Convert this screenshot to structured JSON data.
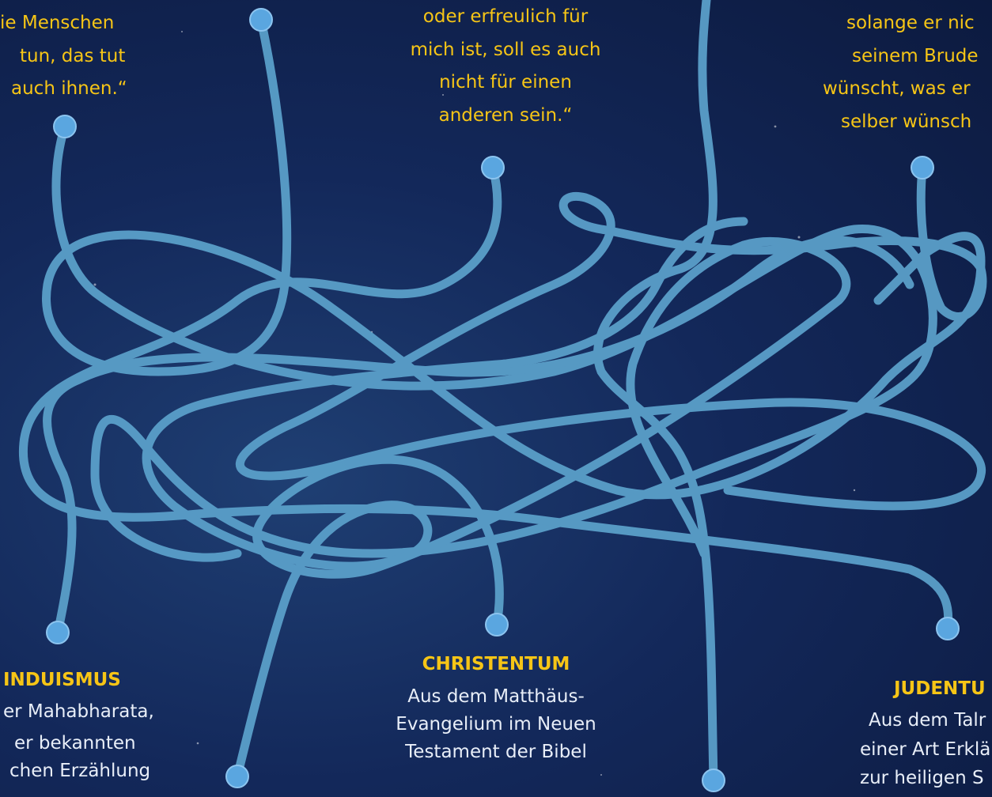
{
  "quotes": [
    {
      "lines": [
        "ie Menschen",
        "tun, das tut",
        "auch ihnen.“"
      ]
    },
    {
      "lines": [
        "oder erfreulich für",
        "mich ist, soll es auch",
        "nicht für einen",
        "anderen sein.“"
      ]
    },
    {
      "lines": [
        "solange er nic",
        "seinem Brude",
        "wünscht, was er",
        "selber wünsch"
      ]
    }
  ],
  "sources": [
    {
      "title": "INDUISMUS",
      "lines": [
        "er Mahabharata,",
        "er bekannten",
        "chen Erzählung"
      ]
    },
    {
      "title": "CHRISTENTUM",
      "lines": [
        "Aus dem Matthäus-",
        "Evangelium im Neuen",
        "Testament der Bibel"
      ]
    },
    {
      "title": "JUDENTU",
      "lines": [
        "Aus dem Talr",
        "einer Art Erklä",
        "zur heiligen S"
      ]
    }
  ]
}
